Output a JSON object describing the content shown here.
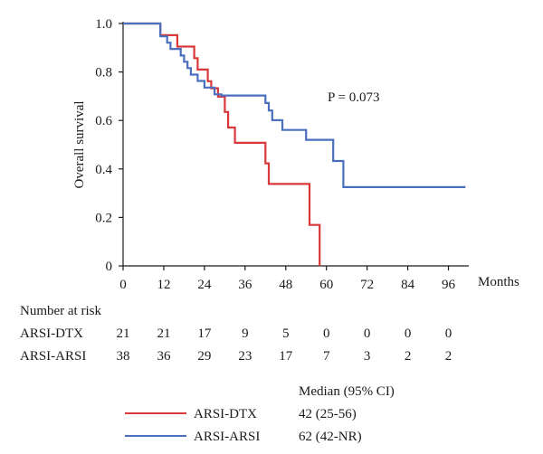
{
  "chart_data": {
    "type": "line",
    "subtype": "kaplan-meier step",
    "title": "",
    "xlabel": "Months",
    "ylabel": "Overall survival",
    "xlim": [
      0,
      102
    ],
    "ylim": [
      0,
      1.0
    ],
    "x_ticks": [
      "0",
      "12",
      "24",
      "36",
      "48",
      "60",
      "72",
      "84",
      "96"
    ],
    "y_ticks": [
      "0",
      "0.2",
      "0.4",
      "0.6",
      "0.8",
      "1.0"
    ],
    "grid": false,
    "annotation": "P = 0.073",
    "series": [
      {
        "name": "ARSI-DTX",
        "color": "#d9383a",
        "median": "42 (25-56)",
        "points": [
          [
            0,
            1.0
          ],
          [
            11,
            1.0
          ],
          [
            11,
            0.952
          ],
          [
            16,
            0.952
          ],
          [
            16,
            0.905
          ],
          [
            21,
            0.905
          ],
          [
            21,
            0.857
          ],
          [
            22,
            0.857
          ],
          [
            22,
            0.81
          ],
          [
            25,
            0.81
          ],
          [
            25,
            0.762
          ],
          [
            26,
            0.762
          ],
          [
            26,
            0.733
          ],
          [
            28,
            0.733
          ],
          [
            28,
            0.698
          ],
          [
            30,
            0.698
          ],
          [
            30,
            0.635
          ],
          [
            31,
            0.635
          ],
          [
            31,
            0.571
          ],
          [
            33,
            0.571
          ],
          [
            33,
            0.508
          ],
          [
            42,
            0.508
          ],
          [
            42,
            0.423
          ],
          [
            43,
            0.423
          ],
          [
            43,
            0.338
          ],
          [
            55,
            0.338
          ],
          [
            55,
            0.169
          ],
          [
            58,
            0.169
          ],
          [
            58,
            0.0
          ]
        ]
      },
      {
        "name": "ARSI-ARSI",
        "color": "#4a6fbf",
        "median": "62 (42-NR)",
        "points": [
          [
            0,
            1.0
          ],
          [
            11,
            1.0
          ],
          [
            11,
            0.947
          ],
          [
            13,
            0.947
          ],
          [
            13,
            0.921
          ],
          [
            14,
            0.921
          ],
          [
            14,
            0.895
          ],
          [
            17,
            0.895
          ],
          [
            17,
            0.868
          ],
          [
            18,
            0.868
          ],
          [
            18,
            0.842
          ],
          [
            19,
            0.842
          ],
          [
            19,
            0.816
          ],
          [
            20,
            0.816
          ],
          [
            20,
            0.789
          ],
          [
            22,
            0.789
          ],
          [
            22,
            0.763
          ],
          [
            24,
            0.763
          ],
          [
            24,
            0.736
          ],
          [
            27,
            0.736
          ],
          [
            27,
            0.708
          ],
          [
            29,
            0.708
          ],
          [
            29,
            0.703
          ],
          [
            42,
            0.703
          ],
          [
            42,
            0.672
          ],
          [
            43,
            0.672
          ],
          [
            43,
            0.641
          ],
          [
            44,
            0.641
          ],
          [
            44,
            0.601
          ],
          [
            47,
            0.601
          ],
          [
            47,
            0.561
          ],
          [
            54,
            0.561
          ],
          [
            54,
            0.52
          ],
          [
            62,
            0.52
          ],
          [
            62,
            0.433
          ],
          [
            65,
            0.433
          ],
          [
            65,
            0.325
          ],
          [
            101,
            0.325
          ]
        ]
      }
    ]
  },
  "risk_table": {
    "title": "Number at risk",
    "rows": [
      {
        "label": "ARSI-DTX",
        "values": [
          "21",
          "21",
          "17",
          "9",
          "5",
          "0",
          "0",
          "0",
          "0"
        ]
      },
      {
        "label": "ARSI-ARSI",
        "values": [
          "38",
          "36",
          "29",
          "23",
          "17",
          "7",
          "3",
          "2",
          "2"
        ]
      }
    ]
  },
  "legend": {
    "header": "Median (95% CI)",
    "items": [
      {
        "label": "ARSI-DTX",
        "median": "42 (25-56)",
        "color": "#d9383a"
      },
      {
        "label": "ARSI-ARSI",
        "median": "62 (42-NR)",
        "color": "#4a6fbf"
      }
    ]
  }
}
